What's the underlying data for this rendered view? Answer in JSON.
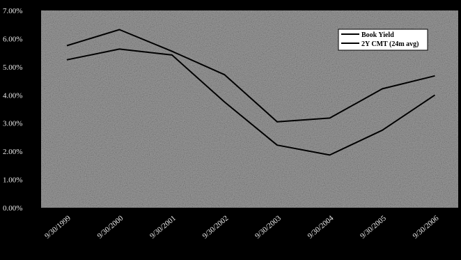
{
  "chart_data": {
    "type": "line",
    "x": [
      "9/30/1999",
      "9/30/2000",
      "9/30/2001",
      "9/30/2002",
      "9/30/2003",
      "9/30/2004",
      "9/30/2005",
      "9/30/2006"
    ],
    "series": [
      {
        "name": "Book Yield",
        "values": [
          5.75,
          6.32,
          5.55,
          4.72,
          3.05,
          3.18,
          4.22,
          4.68
        ]
      },
      {
        "name": "2Y CMT (24m avg)",
        "values": [
          5.25,
          5.63,
          5.42,
          3.75,
          2.22,
          1.87,
          2.75,
          4.0
        ]
      }
    ],
    "y_tick_labels": [
      "0.00%",
      "1.00%",
      "2.00%",
      "3.00%",
      "4.00%",
      "5.00%",
      "6.00%",
      "7.00%"
    ],
    "ylim": [
      0,
      7
    ],
    "title": "",
    "xlabel": "",
    "ylabel": "",
    "legend_position": "top-right",
    "grid": false,
    "colors": {
      "background": "#000000",
      "plot_area": "#8c8c8c",
      "line": "#000000",
      "text": "#e8e8e8"
    }
  }
}
